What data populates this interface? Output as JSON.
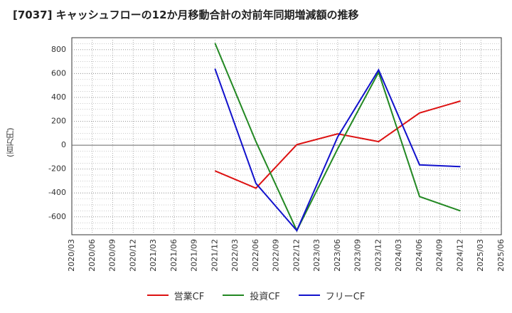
{
  "chart_data": {
    "type": "line",
    "title": "[7037]  キャッシュフローの12か月移動合計の対前年同期増減額の推移",
    "ylabel": "(百万円)",
    "xlabel": "",
    "ylim": [
      -750,
      900
    ],
    "yticks": [
      800,
      600,
      400,
      200,
      0,
      -200,
      -400,
      -600
    ],
    "x_ticks": [
      "2020/03",
      "2020/06",
      "2020/09",
      "2020/12",
      "2021/03",
      "2021/06",
      "2021/09",
      "2021/12",
      "2022/03",
      "2022/06",
      "2022/09",
      "2022/12",
      "2023/03",
      "2023/06",
      "2023/09",
      "2023/12",
      "2024/03",
      "2024/06",
      "2024/09",
      "2024/12",
      "2025/03",
      "2025/06"
    ],
    "series": [
      {
        "name": "営業CF",
        "color": "#dd1111",
        "x": [
          "2021/12",
          "2022/06",
          "2022/12",
          "2023/06",
          "2023/12",
          "2024/06",
          "2024/12"
        ],
        "values": [
          -215,
          -360,
          5,
          95,
          30,
          270,
          370
        ]
      },
      {
        "name": "投資CF",
        "color": "#228822",
        "x": [
          "2021/12",
          "2022/06",
          "2022/12",
          "2023/06",
          "2023/12",
          "2024/06",
          "2024/12"
        ],
        "values": [
          855,
          30,
          -715,
          -30,
          610,
          -430,
          -550
        ]
      },
      {
        "name": "フリーCF",
        "color": "#1111cc",
        "x": [
          "2021/12",
          "2022/06",
          "2022/12",
          "2023/06",
          "2023/12",
          "2024/06",
          "2024/12"
        ],
        "values": [
          640,
          -320,
          -715,
          70,
          630,
          -165,
          -180
        ]
      }
    ]
  }
}
